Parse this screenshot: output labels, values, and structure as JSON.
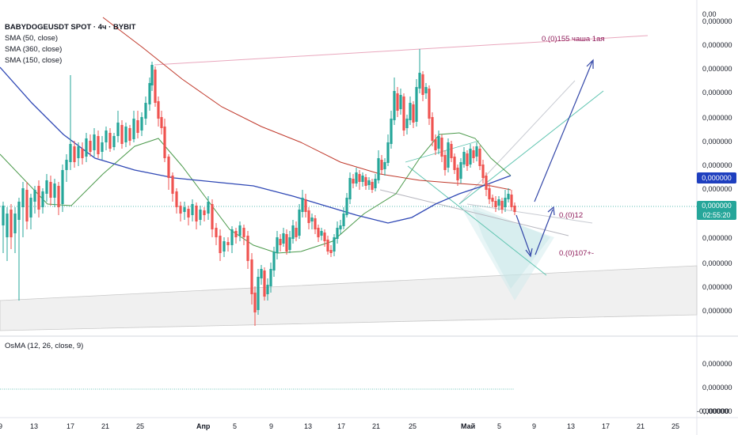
{
  "header": {
    "symbol_line": "BABYDOGEUSDT SPOT · 4ч · BYBIT",
    "indicators": [
      "SMA (50, close)",
      "SMA (360, close)",
      "SMA (150, close)"
    ],
    "osma_label": "OsMA (12, 26, close, 9)"
  },
  "annotations": {
    "top_line": "0.(0)155 чаша 1ая",
    "mid_line": "0.(0)12",
    "low_line": "0.(0)107+-"
  },
  "price_tags": {
    "blue": "0,000000",
    "green": "0,000000",
    "countdown": "02:55:20"
  },
  "colors": {
    "up": "#26a69a",
    "down": "#ef5350",
    "sma50": "#4c9a4c",
    "sma360": "#c0392b",
    "sma150": "#2f48b5",
    "anno": "#8e1b5a",
    "blue_tag": "#1e3fbf",
    "green_tag": "#26a69a"
  },
  "chart_data": {
    "type": "candlestick",
    "title": "BABYDOGEUSDT SPOT · 4ч · BYBIT",
    "x_ticks": [
      "9",
      "13",
      "17",
      "21",
      "25",
      "Апр",
      "5",
      "9",
      "13",
      "17",
      "21",
      "25",
      "Май",
      "5",
      "9",
      "13",
      "17",
      "21",
      "25"
    ],
    "y_ticks": [
      "0,00",
      "0,000000",
      "0,000000",
      "0,000000",
      "0,000000",
      "0,000000",
      "0,000000",
      "0,000000",
      "0,000000",
      "0,000000",
      "0,000000",
      "0,000000",
      "0,000000"
    ],
    "osma_y_ticks": [
      "0,000000",
      "0,000000",
      "0,000000",
      "-0,000000"
    ],
    "series": [
      {
        "name": "SMA (50, close)",
        "shape": "[[0,195],[60,258],[90,260],[130,220],[170,185],[200,175],[230,210],[260,250],[290,290],[320,310],[350,320],[380,318],[420,305],[460,270],[500,245],[530,200],[555,170],[580,168],[600,175],[620,200],[645,222]]"
      },
      {
        "name": "SMA (360, close)",
        "shape": "[[130,22],[180,60],[230,100],[280,135],[330,160],[380,180],[430,205],[480,220],[530,228],[580,232],[620,235],[645,240]]"
      },
      {
        "name": "SMA (150, close)",
        "shape": "[[0,85],[40,130],[80,170],[120,200],[170,215],[220,225],[270,230],[320,235],[370,248],[410,260],[450,272],[490,282],[520,275],[550,258],[580,245],[610,235],[645,222]]"
      }
    ],
    "candles": [
      [
        4,
        285,
        260,
        320,
        255
      ],
      [
        9,
        300,
        270,
        330,
        262
      ],
      [
        14,
        265,
        300,
        315,
        258
      ],
      [
        19,
        295,
        270,
        320,
        262
      ],
      [
        24,
        278,
        255,
        380,
        250
      ],
      [
        29,
        262,
        238,
        300,
        230
      ],
      [
        34,
        240,
        280,
        290,
        230
      ],
      [
        39,
        275,
        250,
        290,
        245
      ],
      [
        44,
        255,
        240,
        270,
        235
      ],
      [
        49,
        235,
        265,
        275,
        228
      ],
      [
        54,
        262,
        242,
        270,
        238
      ],
      [
        59,
        245,
        228,
        255,
        220
      ],
      [
        64,
        230,
        250,
        260,
        222
      ],
      [
        69,
        250,
        232,
        262,
        226
      ],
      [
        74,
        235,
        262,
        272,
        230
      ],
      [
        79,
        258,
        215,
        268,
        208
      ],
      [
        84,
        215,
        202,
        230,
        195
      ],
      [
        89,
        205,
        182,
        215,
        95
      ],
      [
        94,
        185,
        205,
        212,
        178
      ],
      [
        99,
        200,
        185,
        210,
        180
      ],
      [
        104,
        188,
        200,
        208,
        180
      ],
      [
        109,
        198,
        175,
        205,
        168
      ],
      [
        114,
        178,
        192,
        198,
        170
      ],
      [
        119,
        190,
        170,
        198,
        162
      ],
      [
        124,
        172,
        195,
        200,
        165
      ],
      [
        129,
        192,
        180,
        202,
        172
      ],
      [
        134,
        180,
        165,
        190,
        160
      ],
      [
        139,
        168,
        188,
        192,
        162
      ],
      [
        144,
        186,
        172,
        190,
        168
      ],
      [
        149,
        172,
        155,
        180,
        140
      ],
      [
        154,
        158,
        182,
        188,
        152
      ],
      [
        159,
        180,
        160,
        186,
        155
      ],
      [
        164,
        162,
        178,
        184,
        158
      ],
      [
        169,
        176,
        150,
        180,
        140
      ],
      [
        174,
        152,
        168,
        175,
        140
      ],
      [
        179,
        165,
        148,
        172,
        142
      ],
      [
        184,
        150,
        130,
        158,
        122
      ],
      [
        189,
        132,
        105,
        140,
        98
      ],
      [
        192,
        108,
        82,
        115,
        78
      ],
      [
        196,
        88,
        130,
        135,
        84
      ],
      [
        200,
        128,
        150,
        160,
        122
      ],
      [
        204,
        148,
        162,
        170,
        140
      ],
      [
        208,
        160,
        200,
        205,
        150
      ],
      [
        213,
        198,
        225,
        240,
        195
      ],
      [
        218,
        222,
        245,
        255,
        218
      ],
      [
        223,
        242,
        262,
        270,
        238
      ],
      [
        228,
        260,
        270,
        280,
        255
      ],
      [
        233,
        268,
        262,
        278,
        255
      ],
      [
        238,
        264,
        275,
        285,
        260
      ],
      [
        243,
        272,
        258,
        280,
        252
      ],
      [
        248,
        260,
        280,
        290,
        256
      ],
      [
        253,
        278,
        265,
        285,
        260
      ],
      [
        258,
        266,
        272,
        280,
        262
      ],
      [
        263,
        270,
        255,
        278,
        248
      ],
      [
        268,
        258,
        290,
        300,
        252
      ],
      [
        273,
        288,
        300,
        310,
        282
      ],
      [
        278,
        298,
        320,
        330,
        290
      ],
      [
        283,
        318,
        305,
        325,
        300
      ],
      [
        288,
        306,
        310,
        318,
        300
      ],
      [
        293,
        310,
        290,
        320,
        286
      ],
      [
        298,
        292,
        300,
        308,
        288
      ],
      [
        303,
        298,
        285,
        305,
        280
      ],
      [
        308,
        288,
        300,
        310,
        284
      ],
      [
        313,
        298,
        330,
        340,
        292
      ],
      [
        318,
        328,
        372,
        385,
        320
      ],
      [
        322,
        370,
        395,
        412,
        362
      ],
      [
        326,
        392,
        350,
        398,
        340
      ],
      [
        330,
        352,
        340,
        360,
        335
      ],
      [
        334,
        342,
        375,
        380,
        338
      ],
      [
        338,
        372,
        360,
        380,
        352
      ],
      [
        342,
        362,
        340,
        370,
        332
      ],
      [
        346,
        342,
        318,
        350,
        312
      ],
      [
        350,
        320,
        300,
        328,
        292
      ],
      [
        354,
        302,
        310,
        318,
        296
      ],
      [
        358,
        308,
        295,
        312,
        288
      ],
      [
        362,
        296,
        318,
        322,
        290
      ],
      [
        366,
        316,
        300,
        320,
        292
      ],
      [
        370,
        302,
        285,
        308,
        278
      ],
      [
        374,
        288,
        300,
        305,
        280
      ],
      [
        378,
        298,
        265,
        302,
        258
      ],
      [
        382,
        268,
        250,
        275,
        240
      ],
      [
        386,
        252,
        268,
        275,
        245
      ],
      [
        390,
        266,
        282,
        290,
        262
      ],
      [
        394,
        280,
        275,
        290,
        270
      ],
      [
        398,
        276,
        290,
        296,
        272
      ],
      [
        402,
        288,
        300,
        306,
        284
      ],
      [
        406,
        298,
        292,
        304,
        288
      ],
      [
        410,
        294,
        305,
        312,
        290
      ],
      [
        414,
        303,
        318,
        322,
        298
      ],
      [
        418,
        316,
        320,
        325,
        310
      ],
      [
        422,
        318,
        300,
        324,
        296
      ],
      [
        426,
        302,
        288,
        308,
        280
      ],
      [
        430,
        290,
        285,
        296,
        278
      ],
      [
        434,
        286,
        270,
        290,
        262
      ],
      [
        438,
        272,
        250,
        275,
        244
      ],
      [
        442,
        252,
        225,
        258,
        218
      ],
      [
        446,
        226,
        232,
        238,
        220
      ],
      [
        450,
        232,
        218,
        236,
        212
      ],
      [
        454,
        220,
        230,
        240,
        215
      ],
      [
        458,
        230,
        222,
        236,
        218
      ],
      [
        462,
        224,
        235,
        240,
        220
      ],
      [
        466,
        234,
        228,
        240,
        224
      ],
      [
        470,
        230,
        240,
        244,
        226
      ],
      [
        474,
        238,
        226,
        242,
        220
      ],
      [
        478,
        228,
        200,
        232,
        190
      ],
      [
        482,
        202,
        215,
        220,
        196
      ],
      [
        486,
        214,
        205,
        222,
        200
      ],
      [
        490,
        206,
        180,
        210,
        170
      ],
      [
        494,
        182,
        150,
        188,
        140
      ],
      [
        498,
        152,
        115,
        158,
        98
      ],
      [
        502,
        118,
        140,
        148,
        110
      ],
      [
        506,
        138,
        120,
        145,
        112
      ],
      [
        510,
        122,
        165,
        172,
        118
      ],
      [
        514,
        162,
        150,
        170,
        145
      ],
      [
        518,
        152,
        130,
        158,
        122
      ],
      [
        522,
        132,
        155,
        162,
        128
      ],
      [
        526,
        154,
        110,
        160,
        100
      ],
      [
        530,
        112,
        92,
        118,
        62
      ],
      [
        534,
        94,
        120,
        128,
        90
      ],
      [
        538,
        118,
        110,
        125,
        105
      ],
      [
        542,
        112,
        150,
        158,
        108
      ],
      [
        546,
        148,
        178,
        185,
        142
      ],
      [
        550,
        176,
        190,
        196,
        170
      ],
      [
        554,
        188,
        172,
        195,
        165
      ],
      [
        558,
        174,
        198,
        205,
        170
      ],
      [
        562,
        196,
        215,
        222,
        190
      ],
      [
        566,
        212,
        180,
        218,
        175
      ],
      [
        570,
        182,
        200,
        205,
        178
      ],
      [
        574,
        198,
        215,
        220,
        194
      ],
      [
        578,
        212,
        228,
        235,
        208
      ],
      [
        582,
        226,
        205,
        232,
        200
      ],
      [
        586,
        208,
        192,
        212,
        186
      ],
      [
        590,
        194,
        210,
        216,
        190
      ],
      [
        594,
        208,
        188,
        212,
        182
      ],
      [
        598,
        190,
        200,
        206,
        185
      ],
      [
        602,
        198,
        185,
        204,
        180
      ],
      [
        606,
        188,
        210,
        215,
        184
      ],
      [
        610,
        208,
        225,
        232,
        202
      ],
      [
        614,
        222,
        240,
        248,
        218
      ],
      [
        618,
        238,
        252,
        258,
        232
      ],
      [
        622,
        250,
        255,
        262,
        246
      ],
      [
        626,
        254,
        262,
        268,
        248
      ],
      [
        630,
        260,
        252,
        266,
        248
      ],
      [
        634,
        254,
        265,
        270,
        250
      ],
      [
        638,
        262,
        250,
        268,
        240
      ],
      [
        642,
        252,
        245,
        256,
        238
      ],
      [
        646,
        246,
        262,
        266,
        240
      ],
      [
        650,
        260,
        268,
        272,
        256
      ]
    ]
  }
}
